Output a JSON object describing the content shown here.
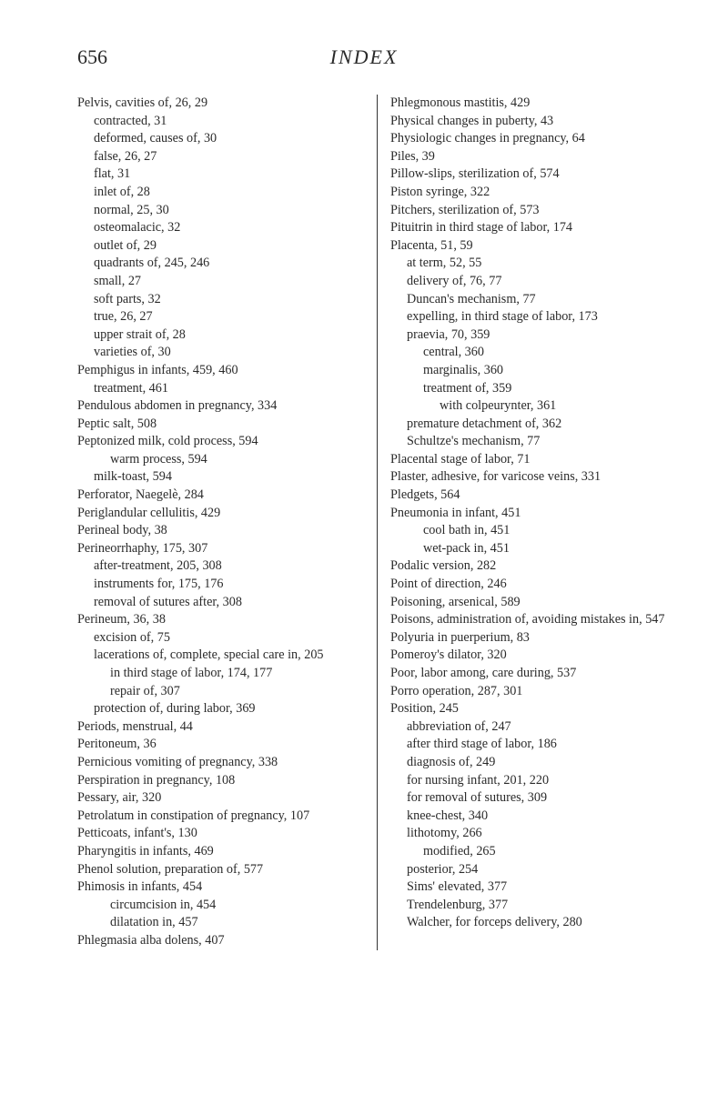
{
  "header": {
    "page_num": "656",
    "title": "INDEX"
  },
  "left_col": [
    {
      "t": "Pelvis, cavities of, 26, 29",
      "i": 0
    },
    {
      "t": "contracted, 31",
      "i": 1
    },
    {
      "t": "deformed, causes of, 30",
      "i": 1
    },
    {
      "t": "false, 26, 27",
      "i": 1
    },
    {
      "t": "flat, 31",
      "i": 1
    },
    {
      "t": "inlet of, 28",
      "i": 1
    },
    {
      "t": "normal, 25, 30",
      "i": 1
    },
    {
      "t": "osteomalacic, 32",
      "i": 1
    },
    {
      "t": "outlet of, 29",
      "i": 1
    },
    {
      "t": "quadrants of, 245, 246",
      "i": 1
    },
    {
      "t": "small, 27",
      "i": 1
    },
    {
      "t": "soft parts, 32",
      "i": 1
    },
    {
      "t": "true, 26, 27",
      "i": 1
    },
    {
      "t": "upper strait of, 28",
      "i": 1
    },
    {
      "t": "varieties of, 30",
      "i": 1
    },
    {
      "t": "Pemphigus in infants, 459, 460",
      "i": 0
    },
    {
      "t": "treatment, 461",
      "i": 1
    },
    {
      "t": "Pendulous abdomen in pregnancy, 334",
      "i": 0
    },
    {
      "t": "Peptic salt, 508",
      "i": 0
    },
    {
      "t": "Peptonized milk, cold process, 594",
      "i": 0
    },
    {
      "t": "warm process, 594",
      "i": 2
    },
    {
      "t": "milk-toast, 594",
      "i": 1
    },
    {
      "t": "Perforator, Naegelè, 284",
      "i": 0
    },
    {
      "t": "Periglandular cellulitis, 429",
      "i": 0
    },
    {
      "t": "Perineal body, 38",
      "i": 0
    },
    {
      "t": "Perineorrhaphy, 175, 307",
      "i": 0
    },
    {
      "t": "after-treatment, 205, 308",
      "i": 1
    },
    {
      "t": "instruments for, 175, 176",
      "i": 1
    },
    {
      "t": "removal of sutures after, 308",
      "i": 1
    },
    {
      "t": "Perineum, 36, 38",
      "i": 0
    },
    {
      "t": "excision of, 75",
      "i": 1
    },
    {
      "t": "lacerations of, complete, special care in, 205",
      "i": 1
    },
    {
      "t": "in third stage of labor, 174, 177",
      "i": 2
    },
    {
      "t": "repair of, 307",
      "i": 2
    },
    {
      "t": "protection of, during labor, 369",
      "i": 1
    },
    {
      "t": "Periods, menstrual, 44",
      "i": 0
    },
    {
      "t": "Peritoneum, 36",
      "i": 0
    },
    {
      "t": "Pernicious vomiting of pregnancy, 338",
      "i": 0
    },
    {
      "t": "Perspiration in pregnancy, 108",
      "i": 0
    },
    {
      "t": "Pessary, air, 320",
      "i": 0
    },
    {
      "t": "Petrolatum in constipation of pregnancy, 107",
      "i": 0
    },
    {
      "t": "Petticoats, infant's, 130",
      "i": 0
    },
    {
      "t": "Pharyngitis in infants, 469",
      "i": 0
    },
    {
      "t": "Phenol solution, preparation of, 577",
      "i": 0
    },
    {
      "t": "Phimosis in infants, 454",
      "i": 0
    },
    {
      "t": "circumcision in, 454",
      "i": 2
    },
    {
      "t": "dilatation in, 457",
      "i": 2
    },
    {
      "t": "Phlegmasia alba dolens, 407",
      "i": 0
    }
  ],
  "right_col": [
    {
      "t": "Phlegmonous mastitis, 429",
      "i": 0
    },
    {
      "t": "Physical changes in puberty, 43",
      "i": 0
    },
    {
      "t": "Physiologic changes in pregnancy, 64",
      "i": 0
    },
    {
      "t": "Piles, 39",
      "i": 0
    },
    {
      "t": "Pillow-slips, sterilization of, 574",
      "i": 0
    },
    {
      "t": "Piston syringe, 322",
      "i": 0
    },
    {
      "t": "Pitchers, sterilization of, 573",
      "i": 0
    },
    {
      "t": "Pituitrin in third stage of labor, 174",
      "i": 0
    },
    {
      "t": "Placenta, 51, 59",
      "i": 0
    },
    {
      "t": "at term, 52, 55",
      "i": 1
    },
    {
      "t": "delivery of, 76, 77",
      "i": 1
    },
    {
      "t": "Duncan's mechanism, 77",
      "i": 1
    },
    {
      "t": "expelling, in third stage of labor, 173",
      "i": 1
    },
    {
      "t": "praevia, 70, 359",
      "i": 1
    },
    {
      "t": "central, 360",
      "i": 2
    },
    {
      "t": "marginalis, 360",
      "i": 2
    },
    {
      "t": "treatment of, 359",
      "i": 2
    },
    {
      "t": "with colpeurynter, 361",
      "i": 3
    },
    {
      "t": "premature detachment of, 362",
      "i": 1
    },
    {
      "t": "Schultze's mechanism, 77",
      "i": 1
    },
    {
      "t": "Placental stage of labor, 71",
      "i": 0
    },
    {
      "t": "Plaster, adhesive, for varicose veins, 331",
      "i": 0
    },
    {
      "t": "Pledgets, 564",
      "i": 0
    },
    {
      "t": "Pneumonia in infant, 451",
      "i": 0
    },
    {
      "t": "cool bath in, 451",
      "i": 2
    },
    {
      "t": "wet-pack in, 451",
      "i": 2
    },
    {
      "t": "Podalic version, 282",
      "i": 0
    },
    {
      "t": "Point of direction, 246",
      "i": 0
    },
    {
      "t": "Poisoning, arsenical, 589",
      "i": 0
    },
    {
      "t": "Poisons, administration of, avoid­ing mistakes in, 547",
      "i": 0
    },
    {
      "t": "Polyuria in puerperium, 83",
      "i": 0
    },
    {
      "t": "Pomeroy's dilator, 320",
      "i": 0
    },
    {
      "t": "Poor, labor among, care during, 537",
      "i": 0
    },
    {
      "t": "Porro operation, 287, 301",
      "i": 0
    },
    {
      "t": "Position, 245",
      "i": 0
    },
    {
      "t": "abbreviation of, 247",
      "i": 1
    },
    {
      "t": "after third stage of labor, 186",
      "i": 1
    },
    {
      "t": "diagnosis of, 249",
      "i": 1
    },
    {
      "t": "for nursing infant, 201, 220",
      "i": 1
    },
    {
      "t": "for removal of sutures, 309",
      "i": 1
    },
    {
      "t": "knee-chest, 340",
      "i": 1
    },
    {
      "t": "lithotomy, 266",
      "i": 1
    },
    {
      "t": "modified, 265",
      "i": 2
    },
    {
      "t": "posterior, 254",
      "i": 1
    },
    {
      "t": "Sims' elevated, 377",
      "i": 1
    },
    {
      "t": "Trendelenburg, 377",
      "i": 1
    },
    {
      "t": "Walcher, for forceps delivery, 280",
      "i": 1
    }
  ]
}
